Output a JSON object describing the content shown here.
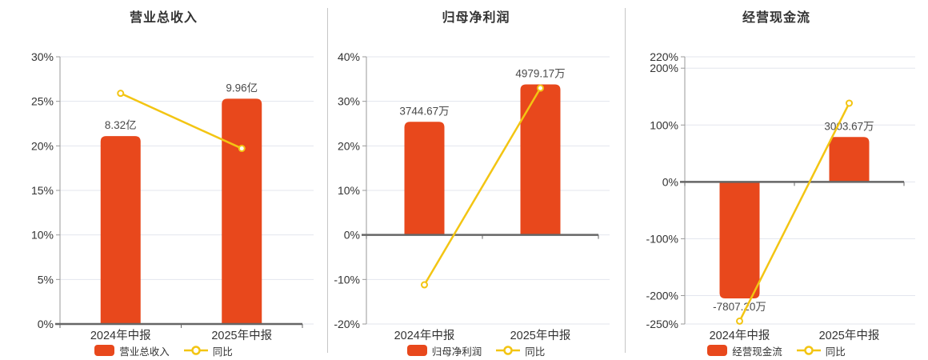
{
  "colors": {
    "bar": "#E8481C",
    "line": "#F3C513",
    "grid": "#E3E6EE",
    "axis_line": "#999999",
    "zero_axis": "#666666",
    "tick_label": "#333333",
    "value_label": "#4A4A4A",
    "title": "#333333",
    "divider": "#C6C6C6",
    "marker_fill": "#FFFFFF"
  },
  "chart_data": [
    {
      "type": "bar+line",
      "title": "营业总收入",
      "categories": [
        "2024年中报",
        "2025年中报"
      ],
      "bar_series": {
        "name": "营业总收入",
        "values": [
          8.32,
          9.96
        ],
        "unit": "亿",
        "labels": [
          "8.32亿",
          "9.96亿"
        ],
        "display_pct": [
          21.1,
          25.3
        ]
      },
      "line_series": {
        "name": "同比",
        "values_pct": [
          25.9,
          19.71
        ]
      },
      "y_ticks": [
        30,
        25,
        20,
        15,
        10,
        5,
        0
      ],
      "ylim": [
        0,
        30
      ],
      "tick_suffix": "%",
      "grid": true,
      "legend_position": "bottom"
    },
    {
      "type": "bar+line",
      "title": "归母净利润",
      "categories": [
        "2024年中报",
        "2025年中报"
      ],
      "bar_series": {
        "name": "归母净利润",
        "values": [
          3744.67,
          4979.17
        ],
        "unit": "万",
        "labels": [
          "3744.67万",
          "4979.17万"
        ],
        "display_pct": [
          25.4,
          33.8
        ]
      },
      "line_series": {
        "name": "同比",
        "values_pct": [
          -11.2,
          32.97
        ]
      },
      "y_ticks": [
        40,
        30,
        20,
        10,
        0,
        -10,
        -20
      ],
      "ylim": [
        -20,
        40
      ],
      "tick_suffix": "%",
      "grid": true,
      "legend_position": "bottom"
    },
    {
      "type": "bar+line",
      "title": "经营现金流",
      "categories": [
        "2024年中报",
        "2025年中报"
      ],
      "bar_series": {
        "name": "经营现金流",
        "values": [
          -7807.2,
          3003.67
        ],
        "unit": "万",
        "labels": [
          "-7807.20万",
          "3003.67万"
        ],
        "display_pct": [
          -205,
          78.9
        ]
      },
      "line_series": {
        "name": "同比",
        "values_pct": [
          -244.93,
          138.47
        ]
      },
      "y_ticks": [
        220,
        200,
        100,
        0,
        -100,
        -200,
        -250
      ],
      "ylim": [
        -250,
        220
      ],
      "tick_suffix": "%",
      "grid": true,
      "legend_position": "bottom"
    }
  ]
}
